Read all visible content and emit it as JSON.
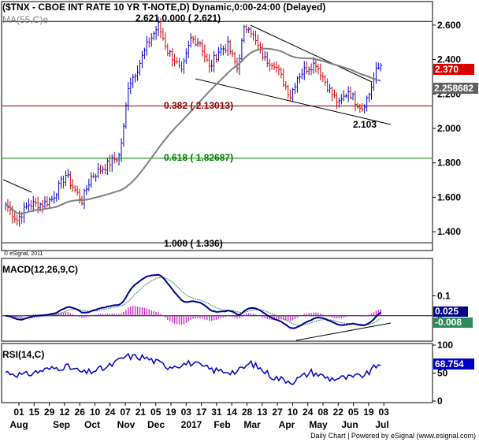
{
  "header": {
    "title": "($TNX - CBOE INT RATE 10 YR T-NOTE,D) Dynamic,0:00-24:00 (Delayed)",
    "ma_label": "MA(55,C)e",
    "copyright_small": "© eSignal, 2011",
    "footer": "Daily Chart | Powered by eSignal (www.esignal.com)"
  },
  "chart_data": [
    {
      "type": "candlestick",
      "name": "price",
      "ylim": [
        1.3,
        2.7
      ],
      "yticks": [
        "2.600",
        "2.400",
        "2.200",
        "2.000",
        "1.800",
        "1.600",
        "1.400"
      ],
      "ma_period": 55,
      "last_price_label": "2.370",
      "ma_value_label": "2.258682",
      "fib_levels": [
        {
          "label": "2.621  0.000 ( 2.621)",
          "value": 2.621,
          "color": "#000000"
        },
        {
          "label": "0.382 ( 2.13013)",
          "value": 2.13013,
          "color": "#8b0000"
        },
        {
          "label": "0.618 ( 1.82687)",
          "value": 1.82687,
          "color": "#008000"
        },
        {
          "label": "1.000 ( 1.336)",
          "value": 1.336,
          "color": "#000000"
        }
      ],
      "annotations": [
        {
          "label": "2.103",
          "value": 2.103
        }
      ],
      "anchors": [
        {
          "i": 0,
          "v": 1.56
        },
        {
          "i": 5,
          "v": 1.47
        },
        {
          "i": 10,
          "v": 1.56
        },
        {
          "i": 16,
          "v": 1.56
        },
        {
          "i": 20,
          "v": 1.59
        },
        {
          "i": 26,
          "v": 1.73
        },
        {
          "i": 30,
          "v": 1.64
        },
        {
          "i": 33,
          "v": 1.58
        },
        {
          "i": 37,
          "v": 1.72
        },
        {
          "i": 41,
          "v": 1.76
        },
        {
          "i": 45,
          "v": 1.8
        },
        {
          "i": 49,
          "v": 1.84
        },
        {
          "i": 51,
          "v": 2.0
        },
        {
          "i": 53,
          "v": 2.25
        },
        {
          "i": 57,
          "v": 2.35
        },
        {
          "i": 61,
          "v": 2.48
        },
        {
          "i": 66,
          "v": 2.6
        },
        {
          "i": 70,
          "v": 2.45
        },
        {
          "i": 73,
          "v": 2.4
        },
        {
          "i": 76,
          "v": 2.32
        },
        {
          "i": 80,
          "v": 2.52
        },
        {
          "i": 84,
          "v": 2.5
        },
        {
          "i": 88,
          "v": 2.35
        },
        {
          "i": 92,
          "v": 2.45
        },
        {
          "i": 96,
          "v": 2.48
        },
        {
          "i": 100,
          "v": 2.35
        },
        {
          "i": 103,
          "v": 2.57
        },
        {
          "i": 105,
          "v": 2.6
        },
        {
          "i": 108,
          "v": 2.5
        },
        {
          "i": 112,
          "v": 2.4
        },
        {
          "i": 116,
          "v": 2.38
        },
        {
          "i": 120,
          "v": 2.27
        },
        {
          "i": 123,
          "v": 2.19
        },
        {
          "i": 126,
          "v": 2.3
        },
        {
          "i": 130,
          "v": 2.35
        },
        {
          "i": 134,
          "v": 2.38
        },
        {
          "i": 137,
          "v": 2.3
        },
        {
          "i": 140,
          "v": 2.22
        },
        {
          "i": 144,
          "v": 2.14
        },
        {
          "i": 148,
          "v": 2.22
        },
        {
          "i": 151,
          "v": 2.16
        },
        {
          "i": 154,
          "v": 2.12
        },
        {
          "i": 157,
          "v": 2.2
        },
        {
          "i": 160,
          "v": 2.33
        },
        {
          "i": 162,
          "v": 2.37
        }
      ]
    },
    {
      "type": "line",
      "name": "MACD(12,26,9,C)",
      "ylim": [
        -0.12,
        0.28
      ],
      "yticks": [
        "0.1",
        "0"
      ],
      "macd_value_label": "0.025",
      "signal_value_label": "-0.008"
    },
    {
      "type": "line",
      "name": "RSI(14,C)",
      "ylim": [
        0,
        100
      ],
      "yticks": [
        "100",
        "50",
        "0"
      ],
      "rsi_value_label": "68.754",
      "anchors": [
        {
          "i": 0,
          "v": 52
        },
        {
          "i": 8,
          "v": 46
        },
        {
          "i": 16,
          "v": 55
        },
        {
          "i": 26,
          "v": 62
        },
        {
          "i": 34,
          "v": 50
        },
        {
          "i": 44,
          "v": 60
        },
        {
          "i": 52,
          "v": 80
        },
        {
          "i": 60,
          "v": 78
        },
        {
          "i": 70,
          "v": 62
        },
        {
          "i": 80,
          "v": 68
        },
        {
          "i": 90,
          "v": 55
        },
        {
          "i": 100,
          "v": 52
        },
        {
          "i": 106,
          "v": 68
        },
        {
          "i": 116,
          "v": 42
        },
        {
          "i": 124,
          "v": 35
        },
        {
          "i": 132,
          "v": 52
        },
        {
          "i": 140,
          "v": 40
        },
        {
          "i": 150,
          "v": 42
        },
        {
          "i": 156,
          "v": 48
        },
        {
          "i": 162,
          "v": 69
        }
      ]
    }
  ],
  "x_axis": {
    "day_labels": [
      "01",
      "15",
      "29",
      "12",
      "26",
      "10",
      "24",
      "07",
      "21",
      "05",
      "19",
      "03",
      "17",
      "31",
      "14",
      "28",
      "13",
      "27",
      "10",
      "24",
      "08",
      "22",
      "05",
      "19",
      "03"
    ],
    "month_labels": [
      "Aug",
      "Sep",
      "Oct",
      "Nov",
      "Dec",
      "2017",
      "Feb",
      "Mar",
      "Apr",
      "May",
      "Jun",
      "Jul"
    ]
  },
  "colors": {
    "up": "#0000cc",
    "down": "#cc0000",
    "ma": "#808080",
    "macd": "#00008b",
    "signal": "#2e8b57",
    "histogram": "#cc33cc",
    "rsi": "#0000cc",
    "price_badge": "#dd0000",
    "ma_badge": "#606060",
    "macd_badge": "#00008b",
    "signal_badge": "#2e8b57",
    "rsi_badge": "#0000cc"
  }
}
